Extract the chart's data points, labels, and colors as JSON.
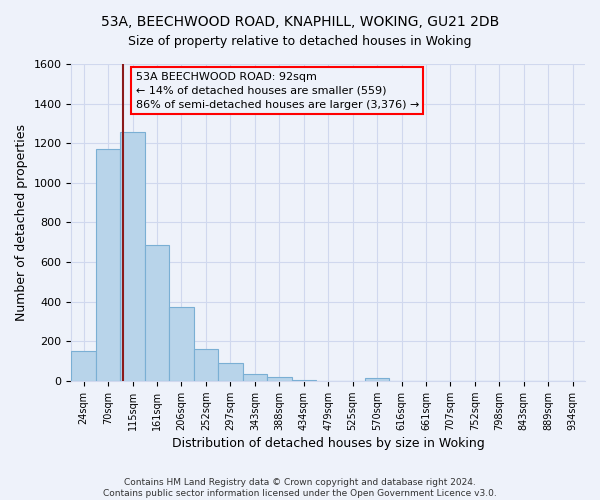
{
  "title1": "53A, BEECHWOOD ROAD, KNAPHILL, WOKING, GU21 2DB",
  "title2": "Size of property relative to detached houses in Woking",
  "xlabel": "Distribution of detached houses by size in Woking",
  "ylabel": "Number of detached properties",
  "categories": [
    "24sqm",
    "70sqm",
    "115sqm",
    "161sqm",
    "206sqm",
    "252sqm",
    "297sqm",
    "343sqm",
    "388sqm",
    "434sqm",
    "479sqm",
    "525sqm",
    "570sqm",
    "616sqm",
    "661sqm",
    "707sqm",
    "752sqm",
    "798sqm",
    "843sqm",
    "889sqm",
    "934sqm"
  ],
  "values": [
    150,
    1170,
    1255,
    685,
    375,
    160,
    90,
    35,
    20,
    5,
    0,
    0,
    15,
    0,
    0,
    0,
    0,
    0,
    0,
    0,
    0
  ],
  "bar_color": "#b8d4ea",
  "bar_edge_color": "#7aafd4",
  "annotation_line1": "53A BEECHWOOD ROAD: 92sqm",
  "annotation_line2": "← 14% of detached houses are smaller (559)",
  "annotation_line3": "86% of semi-detached houses are larger (3,376) →",
  "red_line_x": 1.62,
  "footer1": "Contains HM Land Registry data © Crown copyright and database right 2024.",
  "footer2": "Contains public sector information licensed under the Open Government Licence v3.0.",
  "ylim": [
    0,
    1600
  ],
  "yticks": [
    0,
    200,
    400,
    600,
    800,
    1000,
    1200,
    1400,
    1600
  ],
  "background_color": "#eef2fa",
  "grid_color": "#d0d8ee",
  "title_fontsize": 10,
  "subtitle_fontsize": 9
}
